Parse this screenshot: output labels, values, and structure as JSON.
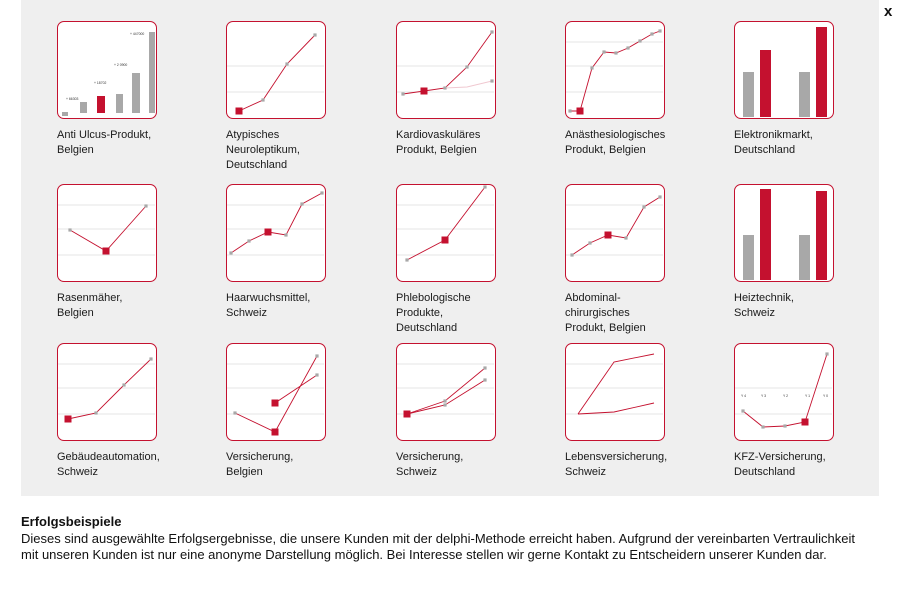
{
  "close_label": "x",
  "colors": {
    "accent": "#c4112f",
    "grey": "#a8a8a8",
    "gridline": "#dcdcdc"
  },
  "examples": [
    {
      "caption": [
        "Anti Ulcus-Produkt,",
        "Belgien"
      ],
      "kind": "bars-labeled",
      "labels": [
        "+ 66303",
        "+ 18702",
        "+ 2 0900",
        "+ 447000"
      ]
    },
    {
      "caption": [
        "Atypisches",
        "Neuroleptikum,",
        "Deutschland"
      ],
      "kind": "line"
    },
    {
      "caption": [
        "Kardiovaskuläres",
        "Produkt, Belgien"
      ],
      "kind": "line"
    },
    {
      "caption": [
        "Anästhesiologisches",
        "Produkt, Belgien"
      ],
      "kind": "line"
    },
    {
      "caption": [
        "Elektronikmarkt,",
        "Deutschland"
      ],
      "kind": "bars"
    },
    {
      "caption": [
        "Rasenmäher,",
        "Belgien"
      ],
      "kind": "line"
    },
    {
      "caption": [
        "Haarwuchsmittel,",
        "Schweiz"
      ],
      "kind": "line"
    },
    {
      "caption": [
        "Phlebologische",
        "Produkte,",
        "Deutschland"
      ],
      "kind": "line"
    },
    {
      "caption": [
        "Abdominal-",
        "chirurgisches",
        "Produkt, Belgien"
      ],
      "kind": "line"
    },
    {
      "caption": [
        "Heiztechnik,",
        "Schweiz"
      ],
      "kind": "bars"
    },
    {
      "caption": [
        "Gebäudeautomation,",
        "Schweiz"
      ],
      "kind": "line"
    },
    {
      "caption": [
        "Versicherung,",
        "Belgien"
      ],
      "kind": "line"
    },
    {
      "caption": [
        "Versicherung,",
        "Schweiz"
      ],
      "kind": "line"
    },
    {
      "caption": [
        "Lebensversicherung,",
        "Schweiz"
      ],
      "kind": "line"
    },
    {
      "caption": [
        "KFZ-Versicherung,",
        "Deutschland"
      ],
      "kind": "line-labeled",
      "labels": [
        "Y 4",
        "Y 3",
        "Y 2",
        "Y 1",
        "Y 0"
      ]
    }
  ],
  "footer": {
    "title": "Erfolgsbeispiele",
    "text": "Dieses sind ausgewählte Erfolgsergebnisse, die unsere Kunden mit der delphi-Methode erreicht haben. Aufgrund der vereinbarten Vertraulichkeit mit unseren Kunden ist nur eine anonyme Darstellung möglich. Bei Interesse stellen wir gerne Kontakt zu Entscheidern unserer Kunden dar."
  }
}
